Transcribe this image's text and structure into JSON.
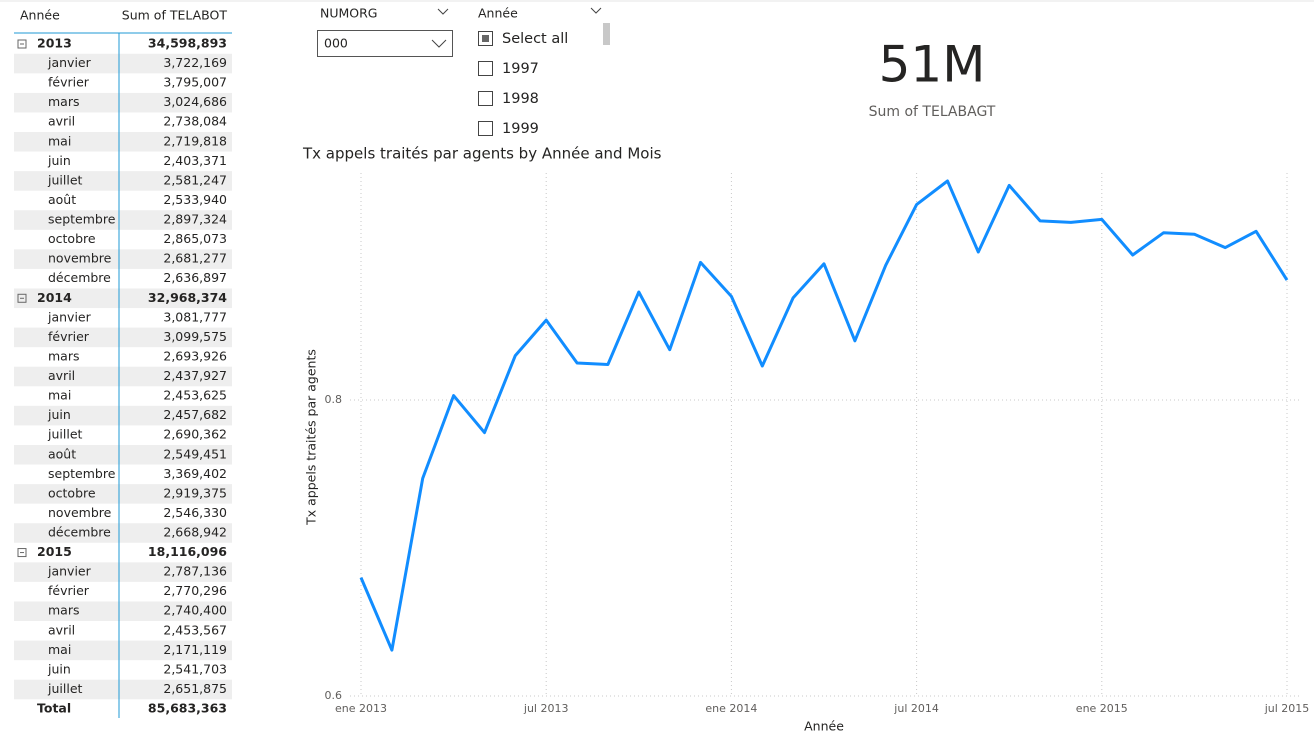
{
  "table": {
    "header": [
      "Année",
      "Sum of TELABOT"
    ],
    "groups": [
      {
        "label": "2013",
        "total": "34,598,893",
        "rows": [
          [
            "janvier",
            "3,722,169"
          ],
          [
            "février",
            "3,795,007"
          ],
          [
            "mars",
            "3,024,686"
          ],
          [
            "avril",
            "2,738,084"
          ],
          [
            "mai",
            "2,719,818"
          ],
          [
            "juin",
            "2,403,371"
          ],
          [
            "juillet",
            "2,581,247"
          ],
          [
            "août",
            "2,533,940"
          ],
          [
            "septembre",
            "2,897,324"
          ],
          [
            "octobre",
            "2,865,073"
          ],
          [
            "novembre",
            "2,681,277"
          ],
          [
            "décembre",
            "2,636,897"
          ]
        ]
      },
      {
        "label": "2014",
        "total": "32,968,374",
        "rows": [
          [
            "janvier",
            "3,081,777"
          ],
          [
            "février",
            "3,099,575"
          ],
          [
            "mars",
            "2,693,926"
          ],
          [
            "avril",
            "2,437,927"
          ],
          [
            "mai",
            "2,453,625"
          ],
          [
            "juin",
            "2,457,682"
          ],
          [
            "juillet",
            "2,690,362"
          ],
          [
            "août",
            "2,549,451"
          ],
          [
            "septembre",
            "3,369,402"
          ],
          [
            "octobre",
            "2,919,375"
          ],
          [
            "novembre",
            "2,546,330"
          ],
          [
            "décembre",
            "2,668,942"
          ]
        ]
      },
      {
        "label": "2015",
        "total": "18,116,096",
        "rows": [
          [
            "janvier",
            "2,787,136"
          ],
          [
            "février",
            "2,770,296"
          ],
          [
            "mars",
            "2,740,400"
          ],
          [
            "avril",
            "2,453,567"
          ],
          [
            "mai",
            "2,171,119"
          ],
          [
            "juin",
            "2,541,703"
          ],
          [
            "juillet",
            "2,651,875"
          ]
        ]
      }
    ],
    "total": [
      "Total",
      "85,683,363"
    ]
  },
  "numorg_slicer": {
    "title": "NUMORG",
    "value": "000"
  },
  "annee_slicer": {
    "title": "Année",
    "items": [
      "Select all",
      "1997",
      "1998",
      "1999"
    ]
  },
  "card": {
    "value": "51M",
    "label": "Sum of TELABAGT"
  },
  "chart_data": {
    "type": "line",
    "title": "Tx appels traités par agents by Année and Mois",
    "x_label": "Année",
    "y_label": "Tx appels traités par agents",
    "x": [
      "2013-01",
      "2013-02",
      "2013-03",
      "2013-04",
      "2013-05",
      "2013-06",
      "2013-07",
      "2013-08",
      "2013-09",
      "2013-10",
      "2013-11",
      "2013-12",
      "2014-01",
      "2014-02",
      "2014-03",
      "2014-04",
      "2014-05",
      "2014-06",
      "2014-07",
      "2014-08",
      "2014-09",
      "2014-10",
      "2014-11",
      "2014-12",
      "2015-01",
      "2015-02",
      "2015-03",
      "2015-04",
      "2015-05",
      "2015-06",
      "2015-07"
    ],
    "series": [
      {
        "name": "Tx appels traités par agents",
        "color": "#118dff",
        "values": [
          0.68,
          0.631,
          0.747,
          0.803,
          0.778,
          0.83,
          0.854,
          0.825,
          0.824,
          0.873,
          0.834,
          0.893,
          0.87,
          0.823,
          0.869,
          0.892,
          0.84,
          0.891,
          0.932,
          0.948,
          0.9,
          0.945,
          0.921,
          0.92,
          0.922,
          0.898,
          0.913,
          0.912,
          0.903,
          0.914,
          0.881
        ]
      }
    ],
    "xlim": [
      "2013-01",
      "2015-07"
    ],
    "xticks": [
      {
        "value": "2013-01",
        "label": "ene 2013"
      },
      {
        "value": "2013-07",
        "label": "jul 2013"
      },
      {
        "value": "2014-01",
        "label": "ene 2014"
      },
      {
        "value": "2014-07",
        "label": "jul 2014"
      },
      {
        "value": "2015-01",
        "label": "ene 2015"
      },
      {
        "value": "2015-07",
        "label": "jul 2015"
      }
    ],
    "ylim": [
      0.6,
      0.95
    ],
    "yticks": [
      0.6,
      0.8
    ],
    "grid": true
  }
}
